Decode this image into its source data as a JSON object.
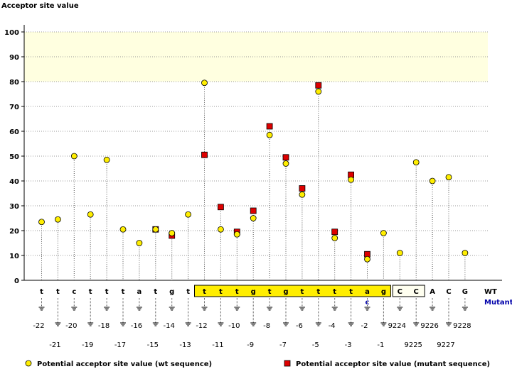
{
  "chart_data": {
    "type": "scatter",
    "title": "Acceptor site value",
    "ylabel": "Acceptor site value",
    "xlabel": "",
    "ylim": [
      0,
      100
    ],
    "yticks": [
      0,
      10,
      20,
      30,
      40,
      50,
      60,
      70,
      80,
      90,
      100
    ],
    "highlight_band": [
      80,
      100
    ],
    "positions": [
      {
        "pos": "-22",
        "base": "t",
        "wt": 23.5,
        "mut": null
      },
      {
        "pos": "-21",
        "base": "t",
        "wt": 24.5,
        "mut": null
      },
      {
        "pos": "-20",
        "base": "c",
        "wt": 50,
        "mut": null
      },
      {
        "pos": "-19",
        "base": "t",
        "wt": 26.5,
        "mut": null
      },
      {
        "pos": "-18",
        "base": "t",
        "wt": 48.5,
        "mut": null
      },
      {
        "pos": "-17",
        "base": "t",
        "wt": 20.5,
        "mut": null
      },
      {
        "pos": "-16",
        "base": "a",
        "wt": 15,
        "mut": null
      },
      {
        "pos": "-15",
        "base": "t",
        "wt": 20.5,
        "mut": 20.5
      },
      {
        "pos": "-14",
        "base": "g",
        "wt": 19,
        "mut": 18
      },
      {
        "pos": "-13",
        "base": "t",
        "wt": 26.5,
        "mut": null
      },
      {
        "pos": "-12",
        "base": "t",
        "wt": 79.5,
        "mut": 50.5
      },
      {
        "pos": "-11",
        "base": "t",
        "wt": 20.5,
        "mut": 29.5
      },
      {
        "pos": "-10",
        "base": "t",
        "wt": 18.5,
        "mut": 19.5
      },
      {
        "pos": "-9",
        "base": "g",
        "wt": 25,
        "mut": 28
      },
      {
        "pos": "-8",
        "base": "t",
        "wt": 58.5,
        "mut": 62
      },
      {
        "pos": "-7",
        "base": "g",
        "wt": 47,
        "mut": 49.5
      },
      {
        "pos": "-6",
        "base": "t",
        "wt": 34.5,
        "mut": 37
      },
      {
        "pos": "-5",
        "base": "t",
        "wt": 76,
        "mut": 78.5
      },
      {
        "pos": "-4",
        "base": "t",
        "wt": 17,
        "mut": 19.5
      },
      {
        "pos": "-3",
        "base": "t",
        "wt": 40.5,
        "mut": 42.5
      },
      {
        "pos": "-2",
        "base": "a",
        "wt": 8.5,
        "mut": 10.5
      },
      {
        "pos": "-1",
        "base": "g",
        "wt": 19,
        "mut": null
      },
      {
        "pos": "9224",
        "base": "C",
        "wt": 11,
        "mut": null
      },
      {
        "pos": "9225",
        "base": "C",
        "wt": 47.5,
        "mut": null
      },
      {
        "pos": "9226",
        "base": "A",
        "wt": 40,
        "mut": null
      },
      {
        "pos": "9227",
        "base": "C",
        "wt": 41.5,
        "mut": null
      },
      {
        "pos": "9228",
        "base": "G",
        "wt": 11,
        "mut": null
      }
    ],
    "intron_highlight": [
      "-12",
      "-1"
    ],
    "exon_highlight": [
      "9224",
      "9225"
    ],
    "mutation": {
      "pos": "-2",
      "base": "c"
    },
    "row_labels": {
      "wt": "WT",
      "mutant": "Mutant"
    },
    "legend": [
      {
        "name": "Potential acceptor site value (wt sequence)",
        "marker": "circle",
        "color": "#ffee00"
      },
      {
        "name": "Potential acceptor site value (mutant sequence)",
        "marker": "square",
        "color": "#dd0000"
      }
    ],
    "colors": {
      "wt_fill": "#ffee00",
      "mut_fill": "#dd0000",
      "band": "#ffffe0",
      "intron_box": "#ffee00",
      "exon_box": "#fffff0"
    }
  }
}
